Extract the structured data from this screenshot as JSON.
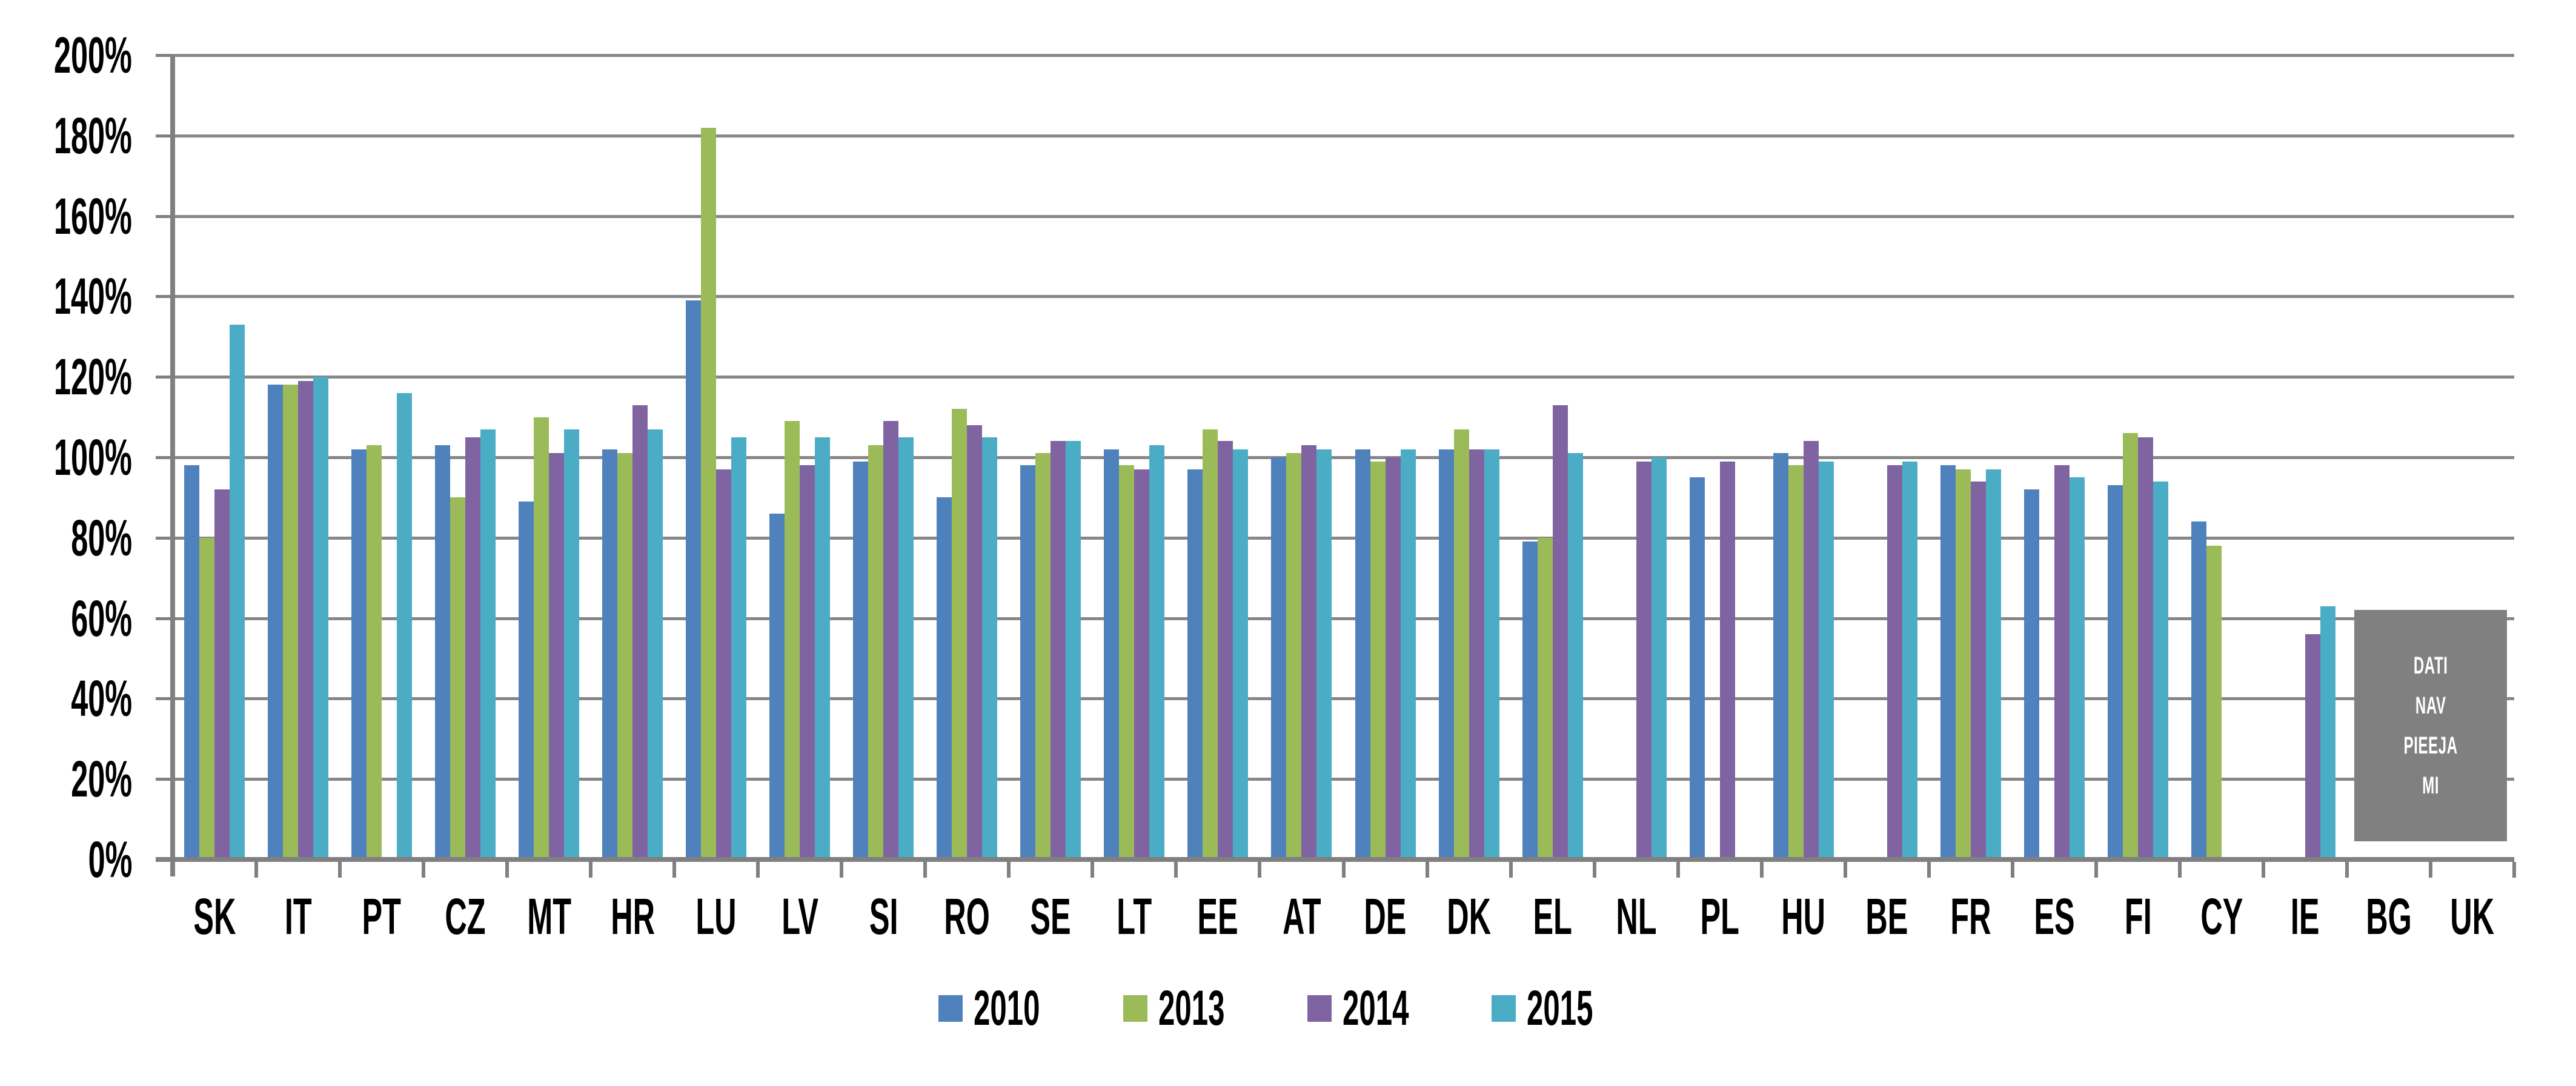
{
  "chart_data": {
    "type": "bar",
    "title": "",
    "xlabel": "",
    "ylabel": "",
    "ylim": [
      0,
      200
    ],
    "grid": true,
    "legend_position": "bottom-center",
    "y_tick_labels": [
      "0%",
      "20%",
      "40%",
      "60%",
      "80%",
      "100%",
      "120%",
      "140%",
      "160%",
      "180%",
      "200%"
    ],
    "categories": [
      "SK",
      "IT",
      "PT",
      "CZ",
      "MT",
      "HR",
      "LU",
      "LV",
      "SI",
      "RO",
      "SE",
      "LT",
      "EE",
      "AT",
      "DE",
      "DK",
      "EL",
      "NL",
      "PL",
      "HU",
      "BE",
      "FR",
      "ES",
      "FI",
      "CY",
      "IE",
      "BG",
      "UK"
    ],
    "series": [
      {
        "name": "2010",
        "color": "#4F81BD",
        "values": [
          98,
          118,
          102,
          103,
          89,
          102,
          139,
          86,
          99,
          90,
          98,
          102,
          97,
          100,
          102,
          102,
          79,
          null,
          95,
          101,
          null,
          98,
          92,
          93,
          84,
          null,
          null,
          null
        ]
      },
      {
        "name": "2013",
        "color": "#9BBB59",
        "values": [
          80,
          118,
          103,
          90,
          110,
          101,
          182,
          109,
          103,
          112,
          101,
          98,
          107,
          101,
          99,
          107,
          80,
          null,
          null,
          98,
          null,
          97,
          null,
          106,
          78,
          null,
          null,
          null
        ]
      },
      {
        "name": "2014",
        "color": "#8064A2",
        "values": [
          92,
          119,
          null,
          105,
          101,
          113,
          97,
          98,
          109,
          108,
          104,
          97,
          104,
          103,
          100,
          102,
          113,
          99,
          99,
          104,
          98,
          94,
          98,
          105,
          null,
          56,
          null,
          null
        ]
      },
      {
        "name": "2015",
        "color": "#4BACC6",
        "values": [
          133,
          120,
          116,
          107,
          107,
          107,
          105,
          105,
          105,
          105,
          104,
          103,
          102,
          102,
          102,
          102,
          101,
          100,
          null,
          99,
          99,
          97,
          95,
          94,
          null,
          63,
          null,
          null
        ]
      }
    ],
    "annotation": {
      "lines": [
        "DATI",
        "NAV",
        "PIEEJA",
        "MI"
      ],
      "covers_categories": [
        "BG",
        "UK"
      ],
      "top_value": 62,
      "bottom_value": 4.5,
      "background": "#808080",
      "text_color": "#FFFFFF"
    },
    "colors": {
      "gridline": "#878787",
      "axis": "#808080",
      "plot_background": "#FFFFFF"
    }
  }
}
